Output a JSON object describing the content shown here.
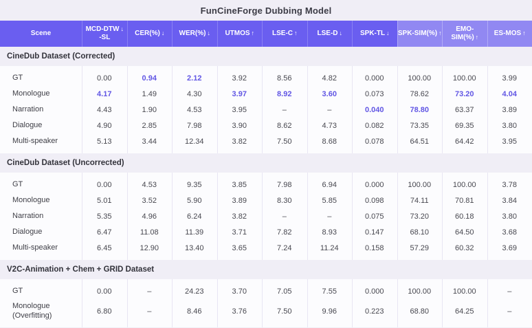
{
  "title": "FunCineForge Dubbing Model",
  "colors": {
    "header_dark": "#6A5EF0",
    "header_light": "#9188F2",
    "highlight": "#6156E4",
    "page_bg": "#F0EEF6",
    "block_bg": "#FCFCFE",
    "text": "#47474F"
  },
  "chart_data": {
    "type": "table",
    "title": "FunCineForge Dubbing Model",
    "columns": [
      {
        "label": "Scene",
        "arrow": "",
        "tone": "dark"
      },
      {
        "label": "MCD-DTW",
        "sublabel": "-SL",
        "arrow": "↓",
        "tone": "dark"
      },
      {
        "label": "CER(%)",
        "arrow": "↓",
        "tone": "dark"
      },
      {
        "label": "WER(%)",
        "arrow": "↓",
        "tone": "dark"
      },
      {
        "label": "UTMOS",
        "arrow": "↑",
        "tone": "dark"
      },
      {
        "label": "LSE-C",
        "arrow": "↑",
        "tone": "dark"
      },
      {
        "label": "LSE-D",
        "arrow": "↓",
        "tone": "dark"
      },
      {
        "label": "SPK-TL",
        "arrow": "↓",
        "tone": "dark"
      },
      {
        "label": "SPK-SIM(%)",
        "arrow": "↑",
        "tone": "light"
      },
      {
        "label": "EMO-SIM(%)",
        "arrow": "↑",
        "tone": "light"
      },
      {
        "label": "ES-MOS",
        "arrow": "↑",
        "tone": "light"
      }
    ],
    "sections": [
      {
        "heading": "CineDub Dataset (Corrected)",
        "rows": [
          {
            "scene": "GT",
            "values": [
              "0.00",
              "0.94",
              "2.12",
              "3.92",
              "8.56",
              "4.82",
              "0.000",
              "100.00",
              "100.00",
              "3.99"
            ],
            "highlight": [
              1,
              2
            ]
          },
          {
            "scene": "Monologue",
            "values": [
              "4.17",
              "1.49",
              "4.30",
              "3.97",
              "8.92",
              "3.60",
              "0.073",
              "78.62",
              "73.20",
              "4.04"
            ],
            "highlight": [
              0,
              3,
              4,
              5,
              8,
              9
            ]
          },
          {
            "scene": "Narration",
            "values": [
              "4.43",
              "1.90",
              "4.53",
              "3.95",
              "–",
              "–",
              "0.040",
              "78.80",
              "63.37",
              "3.89"
            ],
            "highlight": [
              6,
              7
            ]
          },
          {
            "scene": "Dialogue",
            "values": [
              "4.90",
              "2.85",
              "7.98",
              "3.90",
              "8.62",
              "4.73",
              "0.082",
              "73.35",
              "69.35",
              "3.80"
            ],
            "highlight": []
          },
          {
            "scene": "Multi-speaker",
            "values": [
              "5.13",
              "3.44",
              "12.34",
              "3.82",
              "7.50",
              "8.68",
              "0.078",
              "64.51",
              "64.42",
              "3.95"
            ],
            "highlight": []
          }
        ]
      },
      {
        "heading": "CineDub Dataset (Uncorrected)",
        "rows": [
          {
            "scene": "GT",
            "values": [
              "0.00",
              "4.53",
              "9.35",
              "3.85",
              "7.98",
              "6.94",
              "0.000",
              "100.00",
              "100.00",
              "3.78"
            ],
            "highlight": []
          },
          {
            "scene": "Monologue",
            "values": [
              "5.01",
              "3.52",
              "5.90",
              "3.89",
              "8.30",
              "5.85",
              "0.098",
              "74.11",
              "70.81",
              "3.84"
            ],
            "highlight": []
          },
          {
            "scene": "Narration",
            "values": [
              "5.35",
              "4.96",
              "6.24",
              "3.82",
              "–",
              "–",
              "0.075",
              "73.20",
              "60.18",
              "3.80"
            ],
            "highlight": []
          },
          {
            "scene": "Dialogue",
            "values": [
              "6.47",
              "11.08",
              "11.39",
              "3.71",
              "7.82",
              "8.93",
              "0.147",
              "68.10",
              "64.50",
              "3.68"
            ],
            "highlight": []
          },
          {
            "scene": "Multi-speaker",
            "values": [
              "6.45",
              "12.90",
              "13.40",
              "3.65",
              "7.24",
              "11.24",
              "0.158",
              "57.29",
              "60.32",
              "3.69"
            ],
            "highlight": []
          }
        ]
      },
      {
        "heading": "V2C-Animation + Chem + GRID Dataset",
        "rows": [
          {
            "scene": "GT",
            "values": [
              "0.00",
              "–",
              "24.23",
              "3.70",
              "7.05",
              "7.55",
              "0.000",
              "100.00",
              "100.00",
              "–"
            ],
            "highlight": []
          },
          {
            "scene": "Monologue\n(Overfitting)",
            "values": [
              "6.80",
              "–",
              "8.46",
              "3.76",
              "7.50",
              "9.96",
              "0.223",
              "68.80",
              "64.25",
              "–"
            ],
            "highlight": []
          }
        ]
      }
    ]
  }
}
